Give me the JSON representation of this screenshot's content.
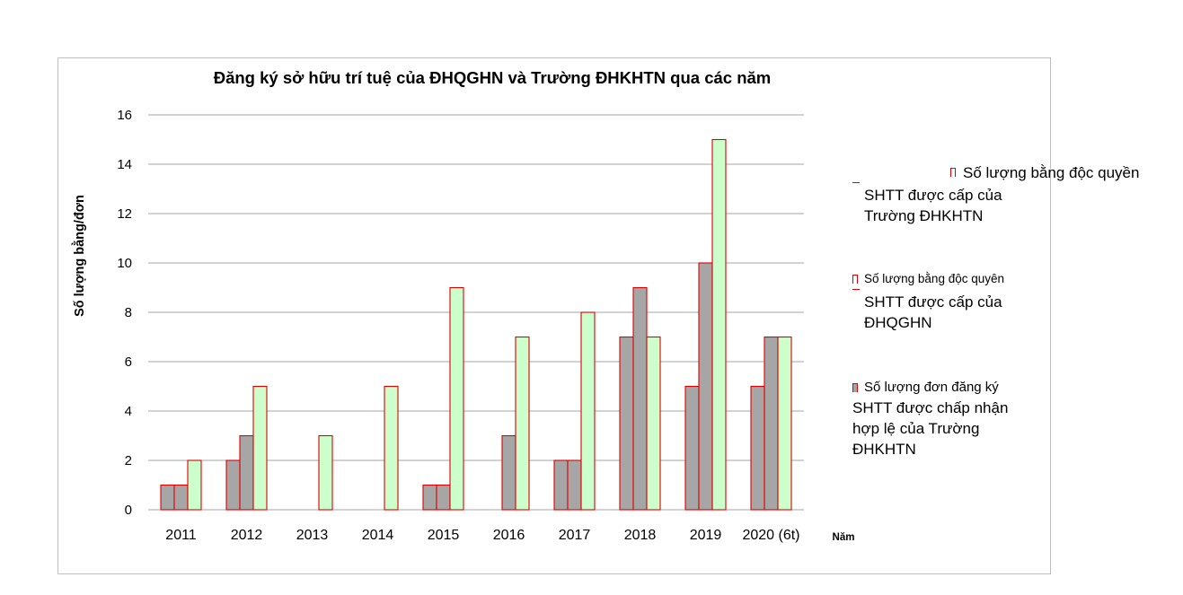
{
  "chart_data": {
    "type": "bar",
    "title": "Đăng ký sở hữu trí tuệ của ĐHQGHN và Trường ĐHKHTN qua các năm",
    "xlabel": "Năm",
    "ylabel": "Số lượng bằng/đơn",
    "ylim": [
      0,
      16
    ],
    "yticks": [
      "0",
      "2",
      "4",
      "6",
      "8",
      "10",
      "12",
      "14",
      "16"
    ],
    "grid": true,
    "legend_position": "right",
    "categories": [
      "2011",
      "2012",
      "2013",
      "2014",
      "2015",
      "2016",
      "2017",
      "2018",
      "2019",
      "2020 (6t)"
    ],
    "series": [
      {
        "name": "Số lượng bằng độc quyền SHTT được cấp của Trường ĐHKHTN",
        "values": [
          1,
          2,
          0,
          0,
          1,
          0,
          2,
          7,
          5,
          5
        ]
      },
      {
        "name": "Số lượng bằng độc quyên SHTT được cấp của ĐHQGHN",
        "values": [
          1,
          3,
          0,
          0,
          1,
          3,
          2,
          9,
          10,
          7
        ]
      },
      {
        "name": "Số lượng đơn đăng ký SHTT được chấp nhận hợp lệ của Trường ĐHKHTN",
        "values": [
          2,
          5,
          3,
          5,
          9,
          7,
          8,
          7,
          15,
          7
        ]
      }
    ]
  },
  "colors": {
    "series1_fill": "#a6a6a6",
    "series2_fill": "#a6a6a6",
    "series3_fill": "#ccffcc",
    "bar_stroke": "#e00000",
    "grid": "#a6a6a6",
    "frame": "#bfbfbf"
  },
  "legend": {
    "item1": {
      "head": "Số lượng bằng độc quyền",
      "line2": "SHTT được cấp của",
      "line3": "Trường ĐHKHTN"
    },
    "item2": {
      "head": "Số lượng bằng độc quyên",
      "line2": "SHTT được cấp của",
      "line3": "ĐHQGHN"
    },
    "item3": {
      "head": "Số lượng đơn đăng ký",
      "line2": "SHTT được chấp nhận",
      "line3": "hợp lệ của Trường",
      "line4": "ĐHKHTN"
    }
  }
}
